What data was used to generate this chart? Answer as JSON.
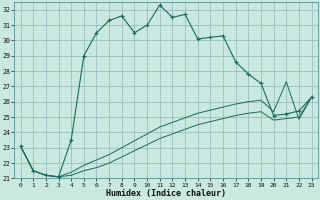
{
  "xlabel": "Humidex (Indice chaleur)",
  "background_color": "#c8e8e0",
  "grid_color": "#9bbfbf",
  "line_color": "#1a6b5a",
  "xlim": [
    -0.5,
    23.5
  ],
  "ylim": [
    21.0,
    32.5
  ],
  "yticks": [
    21,
    22,
    23,
    24,
    25,
    26,
    27,
    28,
    29,
    30,
    31,
    32
  ],
  "xticks": [
    0,
    1,
    2,
    3,
    4,
    5,
    6,
    7,
    8,
    9,
    10,
    11,
    12,
    13,
    14,
    15,
    16,
    17,
    18,
    19,
    20,
    21,
    22,
    23
  ],
  "main_y": [
    23.1,
    21.5,
    21.2,
    21.1,
    23.5,
    29.0,
    30.5,
    31.3,
    31.6,
    30.5,
    31.0,
    32.3,
    31.5,
    31.7,
    30.1,
    30.2,
    30.3,
    28.6,
    27.8,
    27.2,
    25.1,
    25.2,
    25.4,
    26.3
  ],
  "low_y": [
    23.1,
    21.5,
    21.2,
    21.1,
    21.2,
    21.5,
    21.7,
    22.0,
    22.4,
    22.8,
    23.2,
    23.6,
    23.9,
    24.2,
    24.5,
    24.7,
    24.9,
    25.1,
    25.25,
    25.35,
    24.8,
    24.9,
    25.0,
    26.3
  ],
  "high_y": [
    23.1,
    21.5,
    21.2,
    21.1,
    21.4,
    21.85,
    22.2,
    22.55,
    23.0,
    23.45,
    23.9,
    24.35,
    24.65,
    24.95,
    25.25,
    25.45,
    25.65,
    25.85,
    26.0,
    26.1,
    25.35,
    27.3,
    24.85,
    26.3
  ]
}
